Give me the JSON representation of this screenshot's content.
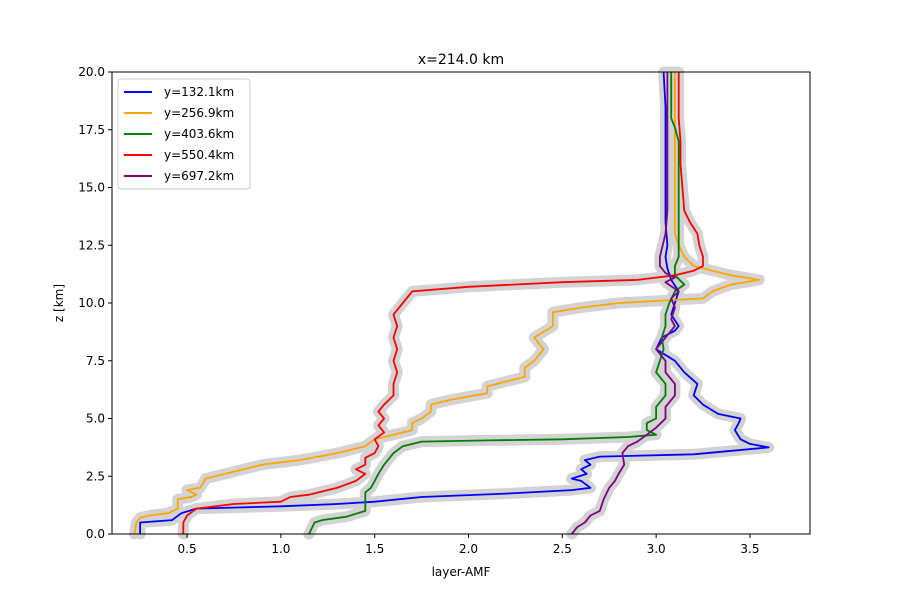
{
  "chart_data": {
    "type": "line",
    "title": "x=214.0 km",
    "xlabel": "layer-AMF",
    "ylabel": "z [km]",
    "xlim": [
      0.1,
      3.82
    ],
    "ylim": [
      0,
      20
    ],
    "xticks": [
      "0.5",
      "1.0",
      "1.5",
      "2.0",
      "2.5",
      "3.0",
      "3.5"
    ],
    "yticks": [
      "0.0",
      "2.5",
      "5.0",
      "7.5",
      "10.0",
      "12.5",
      "15.0",
      "17.5",
      "20.0"
    ],
    "grid": false,
    "legend_position": "upper-left",
    "band_color": "#d3d3d3",
    "series": [
      {
        "name": "y=132.1km",
        "color": "#0000ff",
        "points": [
          [
            0.25,
            0
          ],
          [
            0.25,
            0.5
          ],
          [
            0.42,
            0.6
          ],
          [
            0.47,
            0.9
          ],
          [
            0.55,
            1.1
          ],
          [
            1.0,
            1.2
          ],
          [
            1.3,
            1.3
          ],
          [
            1.5,
            1.4
          ],
          [
            1.75,
            1.6
          ],
          [
            2.2,
            1.75
          ],
          [
            2.55,
            1.9
          ],
          [
            2.65,
            2.0
          ],
          [
            2.6,
            2.3
          ],
          [
            2.55,
            2.4
          ],
          [
            2.63,
            2.6
          ],
          [
            2.6,
            2.8
          ],
          [
            2.65,
            3.0
          ],
          [
            2.62,
            3.2
          ],
          [
            2.7,
            3.35
          ],
          [
            3.2,
            3.45
          ],
          [
            3.6,
            3.75
          ],
          [
            3.5,
            3.9
          ],
          [
            3.45,
            4.1
          ],
          [
            3.42,
            4.5
          ],
          [
            3.44,
            4.8
          ],
          [
            3.45,
            5.0
          ],
          [
            3.33,
            5.2
          ],
          [
            3.25,
            5.6
          ],
          [
            3.2,
            6.0
          ],
          [
            3.22,
            6.5
          ],
          [
            3.15,
            7.0
          ],
          [
            3.1,
            7.5
          ],
          [
            3.0,
            8.0
          ],
          [
            3.03,
            8.5
          ],
          [
            3.1,
            8.8
          ],
          [
            3.12,
            9.0
          ],
          [
            3.08,
            9.5
          ],
          [
            3.1,
            10.0
          ],
          [
            3.12,
            10.5
          ],
          [
            3.08,
            11.0
          ],
          [
            3.06,
            11.5
          ],
          [
            3.05,
            12.0
          ],
          [
            3.06,
            12.5
          ],
          [
            3.05,
            13.5
          ],
          [
            3.05,
            15.0
          ],
          [
            3.05,
            17.0
          ],
          [
            3.05,
            18.5
          ],
          [
            3.04,
            20.0
          ]
        ]
      },
      {
        "name": "y=256.9km",
        "color": "#ffa500",
        "points": [
          [
            0.22,
            0
          ],
          [
            0.23,
            0.5
          ],
          [
            0.25,
            0.7
          ],
          [
            0.3,
            0.8
          ],
          [
            0.4,
            0.9
          ],
          [
            0.45,
            1.1
          ],
          [
            0.45,
            1.5
          ],
          [
            0.52,
            1.6
          ],
          [
            0.55,
            1.7
          ],
          [
            0.5,
            1.9
          ],
          [
            0.57,
            2.0
          ],
          [
            0.6,
            2.4
          ],
          [
            0.75,
            2.7
          ],
          [
            0.9,
            3.0
          ],
          [
            1.1,
            3.2
          ],
          [
            1.3,
            3.5
          ],
          [
            1.45,
            3.8
          ],
          [
            1.5,
            4.1
          ],
          [
            1.7,
            4.5
          ],
          [
            1.7,
            4.8
          ],
          [
            1.75,
            5.0
          ],
          [
            1.8,
            5.3
          ],
          [
            1.8,
            5.6
          ],
          [
            1.9,
            5.8
          ],
          [
            2.1,
            6.1
          ],
          [
            2.1,
            6.4
          ],
          [
            2.3,
            6.8
          ],
          [
            2.3,
            7.2
          ],
          [
            2.35,
            7.5
          ],
          [
            2.4,
            8.0
          ],
          [
            2.35,
            8.5
          ],
          [
            2.45,
            9.0
          ],
          [
            2.45,
            9.6
          ],
          [
            2.6,
            9.8
          ],
          [
            2.8,
            10.0
          ],
          [
            3.25,
            10.2
          ],
          [
            3.3,
            10.5
          ],
          [
            3.4,
            10.8
          ],
          [
            3.55,
            11.0
          ],
          [
            3.4,
            11.2
          ],
          [
            3.3,
            11.4
          ],
          [
            3.2,
            11.6
          ],
          [
            3.15,
            12.0
          ],
          [
            3.12,
            12.5
          ],
          [
            3.1,
            13.0
          ],
          [
            3.1,
            14.0
          ],
          [
            3.1,
            15.0
          ],
          [
            3.1,
            16.5
          ],
          [
            3.1,
            18.0
          ],
          [
            3.1,
            20.0
          ]
        ]
      },
      {
        "name": "y=403.6km",
        "color": "#008000",
        "points": [
          [
            1.15,
            0
          ],
          [
            1.18,
            0.5
          ],
          [
            1.22,
            0.6
          ],
          [
            1.35,
            0.75
          ],
          [
            1.45,
            1.0
          ],
          [
            1.45,
            1.2
          ],
          [
            1.45,
            1.5
          ],
          [
            1.45,
            1.8
          ],
          [
            1.48,
            2.0
          ],
          [
            1.5,
            2.3
          ],
          [
            1.52,
            2.6
          ],
          [
            1.55,
            3.0
          ],
          [
            1.58,
            3.3
          ],
          [
            1.6,
            3.5
          ],
          [
            1.65,
            3.8
          ],
          [
            1.75,
            4.0
          ],
          [
            2.1,
            4.05
          ],
          [
            2.5,
            4.1
          ],
          [
            2.85,
            4.2
          ],
          [
            3.0,
            4.3
          ],
          [
            2.95,
            4.5
          ],
          [
            2.95,
            4.8
          ],
          [
            3.0,
            5.0
          ],
          [
            3.0,
            5.5
          ],
          [
            3.05,
            6.0
          ],
          [
            3.05,
            6.5
          ],
          [
            3.0,
            7.0
          ],
          [
            3.02,
            7.5
          ],
          [
            3.04,
            8.0
          ],
          [
            3.03,
            8.5
          ],
          [
            3.05,
            9.0
          ],
          [
            3.05,
            9.5
          ],
          [
            3.07,
            10.0
          ],
          [
            3.1,
            10.5
          ],
          [
            3.15,
            10.8
          ],
          [
            3.1,
            11.2
          ],
          [
            3.1,
            11.6
          ],
          [
            3.12,
            12.0
          ],
          [
            3.12,
            13.0
          ],
          [
            3.12,
            14.0
          ],
          [
            3.12,
            15.0
          ],
          [
            3.12,
            16.0
          ],
          [
            3.12,
            17.0
          ],
          [
            3.1,
            17.6
          ],
          [
            3.08,
            18.0
          ],
          [
            3.08,
            19.0
          ],
          [
            3.08,
            20.0
          ]
        ]
      },
      {
        "name": "y=550.4km",
        "color": "#ff0000",
        "points": [
          [
            0.48,
            0
          ],
          [
            0.48,
            0.5
          ],
          [
            0.5,
            0.8
          ],
          [
            0.55,
            1.1
          ],
          [
            0.75,
            1.3
          ],
          [
            1.0,
            1.4
          ],
          [
            1.05,
            1.6
          ],
          [
            1.15,
            1.7
          ],
          [
            1.3,
            2.0
          ],
          [
            1.4,
            2.3
          ],
          [
            1.45,
            2.6
          ],
          [
            1.4,
            2.8
          ],
          [
            1.45,
            3.0
          ],
          [
            1.45,
            3.3
          ],
          [
            1.5,
            3.5
          ],
          [
            1.52,
            3.8
          ],
          [
            1.5,
            4.1
          ],
          [
            1.55,
            4.4
          ],
          [
            1.52,
            4.7
          ],
          [
            1.55,
            5.0
          ],
          [
            1.52,
            5.3
          ],
          [
            1.55,
            5.6
          ],
          [
            1.6,
            6.0
          ],
          [
            1.6,
            6.5
          ],
          [
            1.62,
            7.0
          ],
          [
            1.6,
            7.5
          ],
          [
            1.62,
            8.0
          ],
          [
            1.6,
            8.5
          ],
          [
            1.62,
            9.0
          ],
          [
            1.6,
            9.5
          ],
          [
            1.65,
            10.0
          ],
          [
            1.7,
            10.5
          ],
          [
            2.0,
            10.7
          ],
          [
            2.5,
            10.9
          ],
          [
            2.9,
            11.0
          ],
          [
            3.1,
            11.2
          ],
          [
            3.2,
            11.4
          ],
          [
            3.25,
            11.6
          ],
          [
            3.25,
            12.0
          ],
          [
            3.23,
            12.5
          ],
          [
            3.22,
            13.0
          ],
          [
            3.18,
            13.5
          ],
          [
            3.15,
            14.0
          ],
          [
            3.14,
            15.0
          ],
          [
            3.13,
            16.0
          ],
          [
            3.13,
            17.0
          ],
          [
            3.12,
            18.0
          ],
          [
            3.12,
            19.0
          ],
          [
            3.12,
            20.0
          ]
        ]
      },
      {
        "name": "y=697.2km",
        "color": "#800080",
        "points": [
          [
            2.55,
            0
          ],
          [
            2.58,
            0.3
          ],
          [
            2.62,
            0.5
          ],
          [
            2.65,
            0.8
          ],
          [
            2.7,
            1.0
          ],
          [
            2.72,
            1.5
          ],
          [
            2.75,
            2.0
          ],
          [
            2.78,
            2.3
          ],
          [
            2.8,
            2.6
          ],
          [
            2.83,
            3.0
          ],
          [
            2.82,
            3.5
          ],
          [
            2.85,
            3.8
          ],
          [
            2.9,
            4.0
          ],
          [
            2.95,
            4.3
          ],
          [
            3.0,
            4.6
          ],
          [
            3.05,
            5.0
          ],
          [
            3.05,
            5.5
          ],
          [
            3.1,
            6.0
          ],
          [
            3.1,
            6.5
          ],
          [
            3.05,
            7.0
          ],
          [
            3.05,
            7.5
          ],
          [
            3.0,
            8.0
          ],
          [
            3.05,
            8.5
          ],
          [
            3.1,
            9.0
          ],
          [
            3.08,
            9.3
          ],
          [
            3.1,
            9.8
          ],
          [
            3.08,
            10.2
          ],
          [
            3.12,
            10.5
          ],
          [
            3.05,
            10.9
          ],
          [
            3.1,
            11.1
          ],
          [
            3.05,
            11.3
          ],
          [
            3.02,
            11.6
          ],
          [
            3.02,
            12.0
          ],
          [
            3.05,
            13.0
          ],
          [
            3.06,
            14.0
          ],
          [
            3.06,
            15.0
          ],
          [
            3.06,
            16.0
          ],
          [
            3.06,
            17.5
          ],
          [
            3.06,
            19.0
          ],
          [
            3.06,
            20.0
          ]
        ]
      }
    ]
  }
}
